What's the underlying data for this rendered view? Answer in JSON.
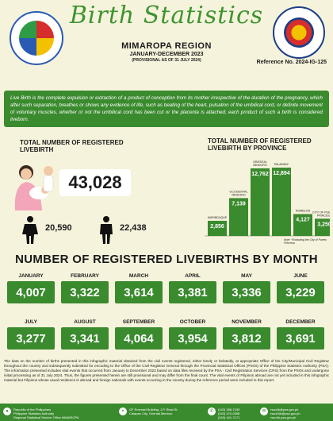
{
  "header": {
    "title": "Birth Statistics",
    "region": "MIMAROPA REGION",
    "period": "JANUARY-DECEMBER 2023",
    "provisional": "(PROVISIONAL AS OF 31 JULY 2024)",
    "reference": "Reference No. 2024-IG-125",
    "left_logo": "psa-seal",
    "right_logo": "civil-registration-seal"
  },
  "definition": "Live Birth is the complete expulsion or extraction of a product of conception from its mother irrespective of the duration of the pregnancy, which after such separation, breathes or shows any evidence of life, such as beating of the heart, pulsation of the umbilical cord, or definite movement of voluntary muscles, whether or not the umbilical cord has been cut or the placenta is attached; each product of such a birth is considered liveborn.",
  "summary": {
    "title_line1": "TOTAL NUMBER OF REGISTERED",
    "title_line2": "LIVEBIRTH",
    "total": "43,028",
    "female": "20,590",
    "male": "22,438",
    "female_icon": "female-icon",
    "male_icon": "male-icon"
  },
  "chart_data": {
    "type": "bar",
    "title_line1": "TOTAL NUMBER OF REGISTERED",
    "title_line2": "LIVEBIRTH BY PROVINCE",
    "categories": [
      "MARINDUQUE",
      "OCCIDENTAL MINDORO",
      "ORIENTAL MINDORO",
      "PALAWAN*",
      "ROMBLON",
      "CITY OF PUERTO PRINCESA"
    ],
    "values": [
      2856,
      7139,
      12762,
      12894,
      4127,
      3250
    ],
    "value_labels": [
      "2,856",
      "7,139",
      "12,762",
      "12,894",
      "4,127",
      "3,250"
    ],
    "ylim": [
      0,
      13500
    ],
    "grid": false,
    "note": "Note: *Excluding the City of Puerto Princesa",
    "bar_color": "#3a8a2e"
  },
  "months_title": "NUMBER OF REGISTERED LIVEBIRTHS BY MONTH",
  "months": [
    {
      "label": "JANUARY",
      "value": "4,007"
    },
    {
      "label": "FEBRUARY",
      "value": "3,322"
    },
    {
      "label": "MARCH",
      "value": "3,614"
    },
    {
      "label": "APRIL",
      "value": "3,381"
    },
    {
      "label": "MAY",
      "value": "3,336"
    },
    {
      "label": "JUNE",
      "value": "3,229"
    },
    {
      "label": "JULY",
      "value": "3,277"
    },
    {
      "label": "AUGUST",
      "value": "3,341"
    },
    {
      "label": "SEPTEMBER",
      "value": "4,064"
    },
    {
      "label": "OCTOBER",
      "value": "3,954"
    },
    {
      "label": "NOVEMBER",
      "value": "3,812"
    },
    {
      "label": "DECEMBER",
      "value": "3,691"
    }
  ],
  "footer_text": "The data on the number of births presented in this infographic material obtained from the civil events registered, either timely or belatedly, at appropriate Office of the City/Municipal Civil Registrar throughout the country and subsequently submitted for encoding to the Office of the Civil Registrar General through the Provincial Statistical Offices (PSOs) of the Philippine Statistics Authority (PSA). The information presented includes vital events that occurred from January to December 2023 based on data files received by the PSA - Civil Registration Services (CRS) from the PSOs and undergone initial processing as of 31 July 2024. Thus, the figures presented herein are still provisional and may differ from the final count. The vital events of Filipinos abroad are not yet included in this infographic material but Filipinos whose usual residence is abroad and foreign nationals with events occurring in the country during the reference period were included in this report.",
  "footer": {
    "org_line1": "Republic of the Philippines",
    "org_line2": "Philippine Statistics Authority",
    "org_line3": "Regional Statistical Service Office MIMAROPA",
    "address_line1": "GF Emerald Building, J.P. Rizal St.",
    "address_line2": "Calapan City, Oriental Mindoro",
    "phone_line1": "(043) 286-7430",
    "phone_line2": "(043) 470-0398",
    "phone_line3": "(043) 441-7171",
    "email_line1": "rsso4b@psa.gov.ph",
    "email_line2": "rsso04b@psa.gov.ph",
    "email_line3": "rsso4b.psa.gov.ph",
    "location_icon": "location-icon",
    "phone_icon": "phone-icon",
    "email_icon": "email-icon"
  }
}
